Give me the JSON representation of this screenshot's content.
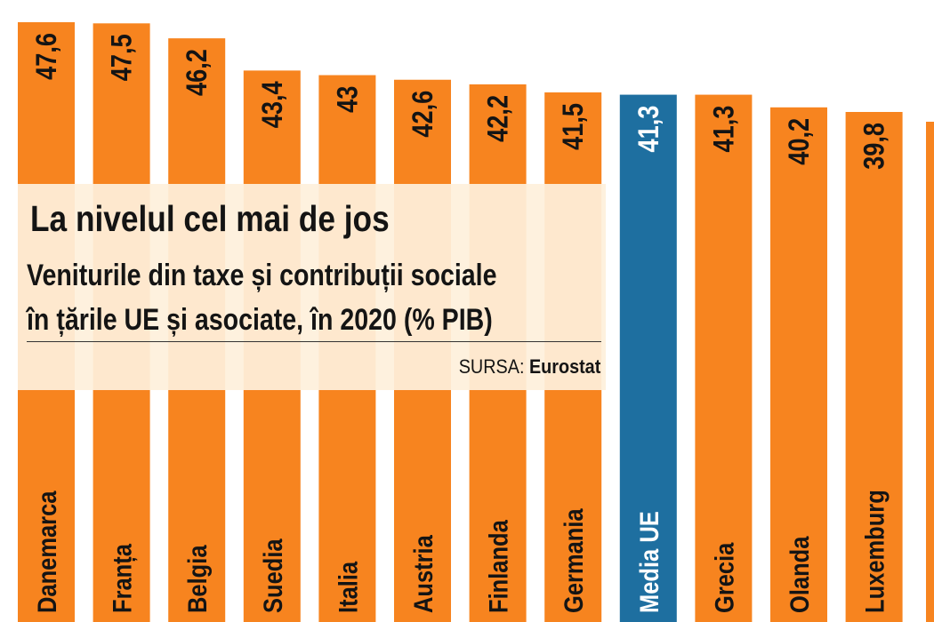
{
  "colors": {
    "bar": "#f7841f",
    "highlight": "#1e6fa0",
    "text_dark": "#141414",
    "text_on_highlight": "#ffffff"
  },
  "header": {
    "title": "La nivelul cel mai de jos",
    "subtitle_line1": "Veniturile din taxe și contribuții sociale",
    "subtitle_line2": "în țările UE și asociate, în 2020  (% PIB)",
    "source_label": "SURSA:",
    "source_name": "Eurostat"
  },
  "chart_data": {
    "type": "bar",
    "title": "La nivelul cel mai de jos",
    "subtitle": "Veniturile din taxe și contribuții sociale în țările UE și asociate, în 2020  (% PIB)",
    "source": "SURSA: Eurostat",
    "categories": [
      "Danemarca",
      "Franța",
      "Belgia",
      "Suedia",
      "Italia",
      "Austria",
      "Finlanda",
      "Germania",
      "Media UE",
      "Grecia",
      "Olanda",
      "Luxemburg"
    ],
    "values": [
      47.6,
      47.5,
      46.2,
      43.4,
      43,
      42.6,
      42.2,
      41.5,
      41.3,
      41.3,
      40.2,
      39.8
    ],
    "value_labels": [
      "47,6",
      "47,5",
      "46,2",
      "43,4",
      "43",
      "42,6",
      "42,2",
      "41,5",
      "41,3",
      "41,3",
      "40,2",
      "39,8"
    ],
    "highlight_category": "Media UE",
    "xlabel": "",
    "ylabel": "",
    "grid": false,
    "legend": "none"
  }
}
